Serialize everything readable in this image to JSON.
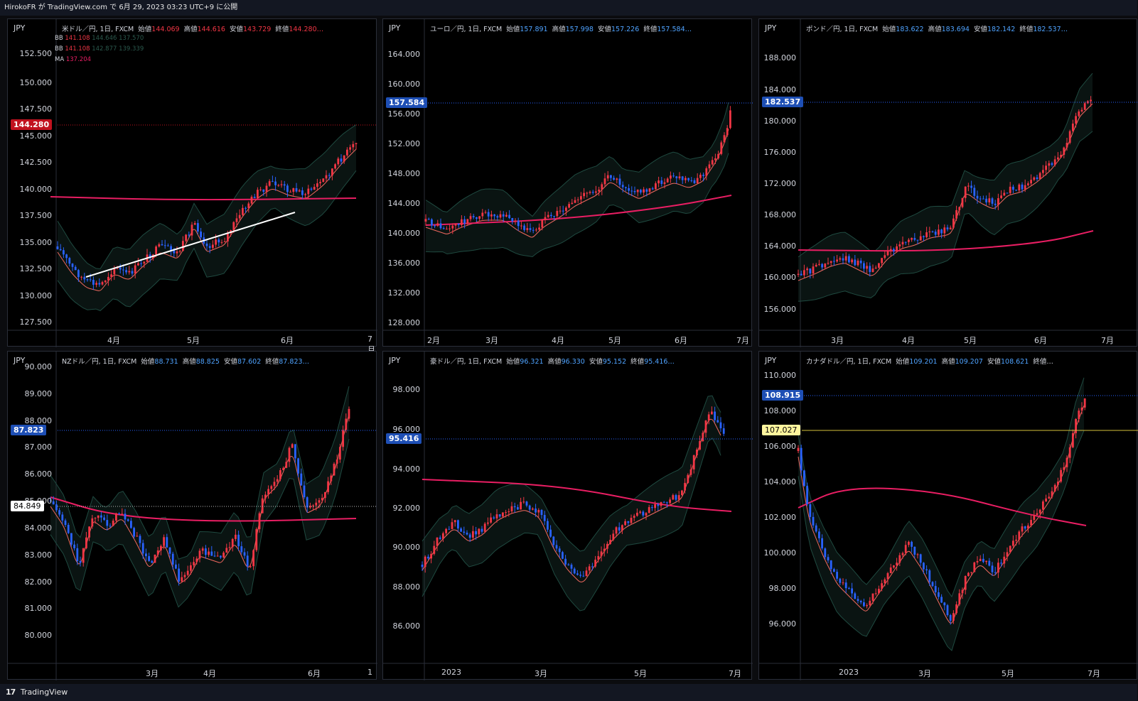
{
  "header": {
    "text": "HirokoFR が TradingView.com で 6月 29, 2023 03:23 UTC+9 に公開"
  },
  "footer": {
    "logo": "17",
    "brand": "TradingView"
  },
  "colors": {
    "up": "#f23645",
    "down": "#2962ff",
    "ma": "#e91e63",
    "bb_mid": "#f0685f",
    "band": "#1d3a34"
  },
  "panels": [
    {
      "currency": "JPY",
      "pair": "米ドル／円, 1日, FXCM",
      "open_label": "始値",
      "open": "144.069",
      "high_label": "高値",
      "high": "144.616",
      "low_label": "安値",
      "low": "143.729",
      "close_label": "終値",
      "close": "144.280…",
      "legend": [
        {
          "name": "BB",
          "v1": "141.108",
          "v2": "144.646",
          "v3": "137.570"
        },
        {
          "name": "BB",
          "v1": "141.108",
          "v2": "142.877",
          "v3": "139.339"
        },
        {
          "name": "MA",
          "v1": "137.204",
          "v2": "",
          "v3": ""
        }
      ],
      "y_ticks": [
        "152.500",
        "150.000",
        "147.500",
        "145.000",
        "142.500",
        "140.000",
        "137.500",
        "135.000",
        "132.500",
        "130.000",
        "127.500"
      ],
      "x_ticks": [
        "4月",
        "5月",
        "6月",
        "7月"
      ],
      "price_tag": "144.280",
      "price_tag_color": "#c1121f"
    },
    {
      "currency": "JPY",
      "pair": "ユーロ／円, 1日, FXCM",
      "open_label": "始値",
      "open": "157.891",
      "high_label": "高値",
      "high": "157.998",
      "low_label": "安値",
      "low": "157.226",
      "close_label": "終値",
      "close": "157.584…",
      "y_ticks": [
        "164.000",
        "160.000",
        "156.000",
        "152.000",
        "148.000",
        "144.000",
        "140.000",
        "136.000",
        "132.000",
        "128.000"
      ],
      "x_ticks": [
        "2月",
        "3月",
        "4月",
        "5月",
        "6月",
        "7月"
      ],
      "price_tag": "157.584",
      "price_tag_color": "#1e4fb5"
    },
    {
      "currency": "JPY",
      "pair": "ポンド／円, 1日, FXCM",
      "open_label": "始値",
      "open": "183.622",
      "high_label": "高値",
      "high": "183.694",
      "low_label": "安値",
      "low": "182.142",
      "close_label": "終値",
      "close": "182.537…",
      "y_ticks": [
        "188.000",
        "184.000",
        "180.000",
        "176.000",
        "172.000",
        "168.000",
        "164.000",
        "160.000",
        "156.000"
      ],
      "x_ticks": [
        "3月",
        "4月",
        "5月",
        "6月",
        "7月"
      ],
      "price_tag": "182.537",
      "price_tag_color": "#1e4fb5"
    },
    {
      "currency": "JPY",
      "pair": "NZドル／円, 1日, FXCM",
      "open_label": "始値",
      "open": "88.731",
      "high_label": "高値",
      "high": "88.825",
      "low_label": "安値",
      "low": "87.602",
      "close_label": "終値",
      "close": "87.823…",
      "y_ticks": [
        "90.000",
        "89.000",
        "88.000",
        "87.000",
        "86.000",
        "85.000",
        "84.000",
        "83.000",
        "82.000",
        "81.000",
        "80.000"
      ],
      "x_ticks": [
        "3月",
        "4月",
        "6月",
        "1"
      ],
      "price_tag": "87.823",
      "price_tag_color": "#1e4fb5",
      "line_tag": "84.849",
      "line_tag_color": "#ffffff"
    },
    {
      "currency": "JPY",
      "pair": "豪ドル／円, 1日, FXCM",
      "open_label": "始値",
      "open": "96.321",
      "high_label": "高値",
      "high": "96.330",
      "low_label": "安値",
      "low": "95.152",
      "close_label": "終値",
      "close": "95.416…",
      "y_ticks": [
        "98.000",
        "96.000",
        "94.000",
        "92.000",
        "90.000",
        "88.000",
        "86.000"
      ],
      "x_ticks": [
        "2023",
        "3月",
        "5月",
        "7月"
      ],
      "price_tag": "95.416",
      "price_tag_color": "#1e4fb5"
    },
    {
      "currency": "JPY",
      "pair": "カナダドル／円, 1日, FXCM",
      "open_label": "始値",
      "open": "109.201",
      "high_label": "高値",
      "high": "109.207",
      "low_label": "安値",
      "low": "108.621",
      "close_label": "終値…",
      "close": "",
      "y_ticks": [
        "110.000",
        "108.000",
        "106.000",
        "104.000",
        "102.000",
        "100.000",
        "98.000",
        "96.000"
      ],
      "x_ticks": [
        "2023",
        "3月",
        "5月",
        "7月"
      ],
      "price_tag": "108.915",
      "price_tag_color": "#1e4fb5",
      "line_tag": "107.027",
      "line_tag_color": "#fff59d"
    }
  ]
}
